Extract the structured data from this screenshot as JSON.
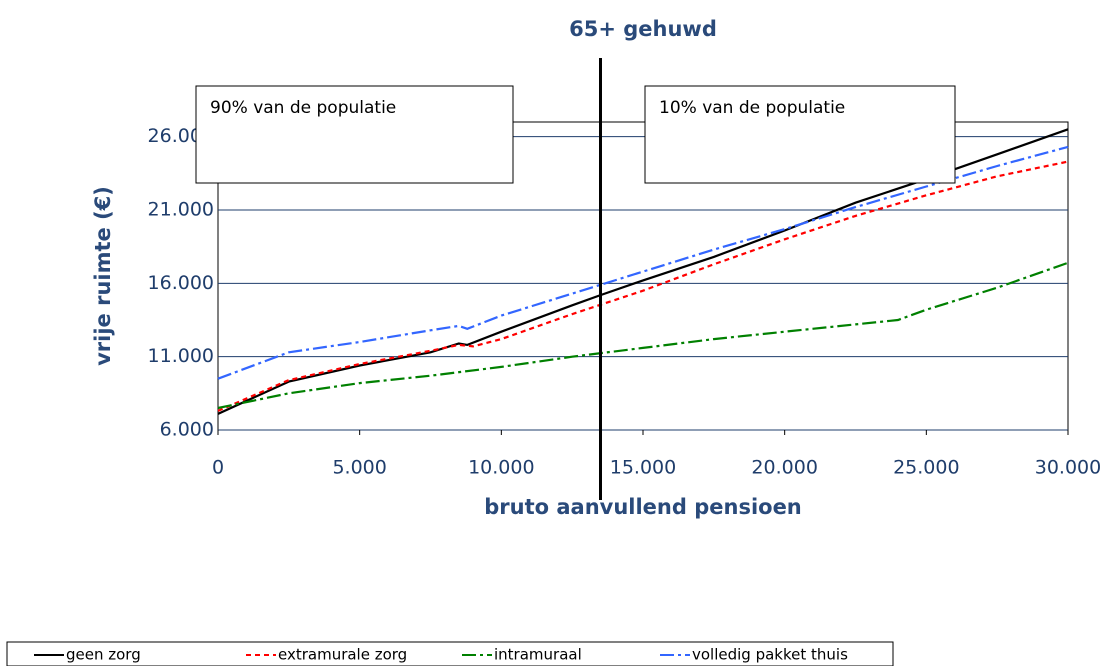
{
  "chart_data": {
    "type": "line",
    "title": "65+ gehuwd",
    "x_label": "bruto aanvullend pensioen",
    "y_label": "vrije ruimte (€)",
    "xlim": [
      0,
      30000
    ],
    "ylim": [
      6000,
      27000
    ],
    "xticks": [
      0,
      {
        "value": 5000,
        "label": "5.000"
      },
      {
        "value": 10000,
        "label": "10.000"
      },
      {
        "value": 15000,
        "label": "15.000"
      },
      {
        "value": 20000,
        "label": "20.000"
      },
      {
        "value": 25000,
        "label": "25.000"
      },
      {
        "value": 30000,
        "label": "30.000"
      }
    ],
    "yticks": [
      {
        "value": 6000,
        "label": "6.000"
      },
      {
        "value": 11000,
        "label": "11.000"
      },
      {
        "value": 16000,
        "label": "16.000"
      },
      {
        "value": 21000,
        "label": "21.000"
      },
      {
        "value": 26000,
        "label": "26.000"
      }
    ],
    "grid": true,
    "divider_x": 13500,
    "annotations": [
      "90% van de populatie",
      "10% van de populatie"
    ],
    "series": [
      {
        "name": "geen zorg",
        "color": "#000000",
        "dash": "solid",
        "x": [
          0,
          2500,
          5000,
          7500,
          8500,
          8800,
          10000,
          12500,
          13500,
          15000,
          17500,
          20000,
          22500,
          25000,
          27500,
          30000
        ],
        "values": [
          7100,
          9300,
          10400,
          11300,
          11900,
          11800,
          12700,
          14500,
          15200,
          16200,
          17800,
          19600,
          21500,
          23100,
          24800,
          26500
        ]
      },
      {
        "name": "extramurale zorg",
        "color": "#ff0000",
        "dash": "short",
        "x": [
          0,
          2500,
          5000,
          7500,
          8500,
          9000,
          10000,
          12500,
          15000,
          17500,
          20000,
          22500,
          25000,
          27500,
          30000
        ],
        "values": [
          7300,
          9400,
          10500,
          11400,
          11800,
          11700,
          12200,
          13900,
          15500,
          17300,
          19000,
          20600,
          22000,
          23300,
          24300
        ]
      },
      {
        "name": "intramuraal",
        "color": "#008000",
        "dash": "dashdot",
        "x": [
          0,
          2500,
          5000,
          7500,
          10000,
          12500,
          15000,
          17500,
          20000,
          22500,
          24000,
          25000,
          27500,
          30000
        ],
        "values": [
          7500,
          8500,
          9200,
          9700,
          10300,
          11000,
          11600,
          12200,
          12700,
          13200,
          13500,
          14200,
          15700,
          17400
        ]
      },
      {
        "name": "volledig pakket thuis",
        "color": "#3366ff",
        "dash": "dashdot",
        "x": [
          0,
          2500,
          5000,
          7500,
          8500,
          8800,
          10000,
          12500,
          15000,
          17500,
          20000,
          22500,
          25000,
          27500,
          30000
        ],
        "values": [
          9500,
          11300,
          12000,
          12800,
          13100,
          12900,
          13800,
          15300,
          16800,
          18300,
          19700,
          21200,
          22600,
          24000,
          25300
        ]
      }
    ]
  }
}
